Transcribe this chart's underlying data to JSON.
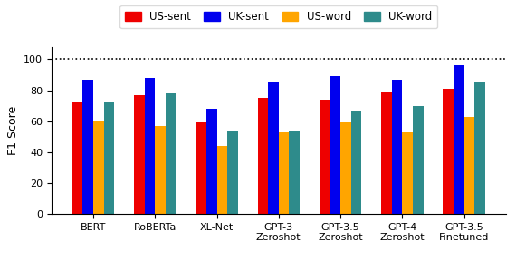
{
  "categories": [
    "BERT",
    "RoBERTa",
    "XL-Net",
    "GPT-3\nZeroshot",
    "GPT-3.5\nZeroshot",
    "GPT-4\nZeroshot",
    "GPT-3.5\nFinetuned"
  ],
  "series": {
    "US-sent": [
      72,
      77,
      59,
      75,
      74,
      79,
      81
    ],
    "UK-sent": [
      87,
      88,
      68,
      85,
      89,
      87,
      96
    ],
    "US-word": [
      60,
      57,
      44,
      53,
      59,
      53,
      63
    ],
    "UK-word": [
      72,
      78,
      54,
      54,
      67,
      70,
      85
    ]
  },
  "colors": {
    "US-sent": "#EE0000",
    "UK-sent": "#0000EE",
    "US-word": "#FFA500",
    "UK-word": "#2E8B8B"
  },
  "ylabel": "F1 Score",
  "ylim": [
    0,
    108
  ],
  "yticks": [
    0,
    20,
    40,
    60,
    80,
    100
  ],
  "hline_y": 100,
  "legend_order": [
    "US-sent",
    "UK-sent",
    "US-word",
    "UK-word"
  ],
  "bar_width": 0.17,
  "axis_fontsize": 9,
  "tick_fontsize": 8,
  "legend_fontsize": 8.5
}
